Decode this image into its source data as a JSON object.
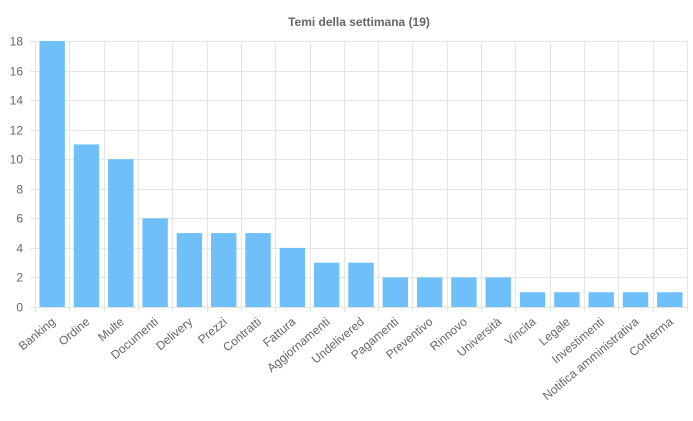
{
  "chart_data": {
    "type": "bar",
    "title": "Temi della settimana (19)",
    "xlabel": "",
    "ylabel": "",
    "categories": [
      "Banking",
      "Ordine",
      "Multe",
      "Documenti",
      "Delivery",
      "Prezzi",
      "Contratti",
      "Fattura",
      "Aggiornamenti",
      "Undelivered",
      "Pagamenti",
      "Preventivo",
      "Rinnovo",
      "Università",
      "Vincita",
      "Legale",
      "Investimenti",
      "Notifica amministrativa",
      "Conferma"
    ],
    "values": [
      18,
      11,
      10,
      6,
      5,
      5,
      5,
      4,
      3,
      3,
      2,
      2,
      2,
      2,
      1,
      1,
      1,
      1,
      1
    ],
    "ylim": [
      0,
      18
    ],
    "yticks": [
      0,
      2,
      4,
      6,
      8,
      10,
      12,
      14,
      16,
      18
    ],
    "grid": true,
    "legend": "none",
    "bar_color": "#6fbff9"
  }
}
